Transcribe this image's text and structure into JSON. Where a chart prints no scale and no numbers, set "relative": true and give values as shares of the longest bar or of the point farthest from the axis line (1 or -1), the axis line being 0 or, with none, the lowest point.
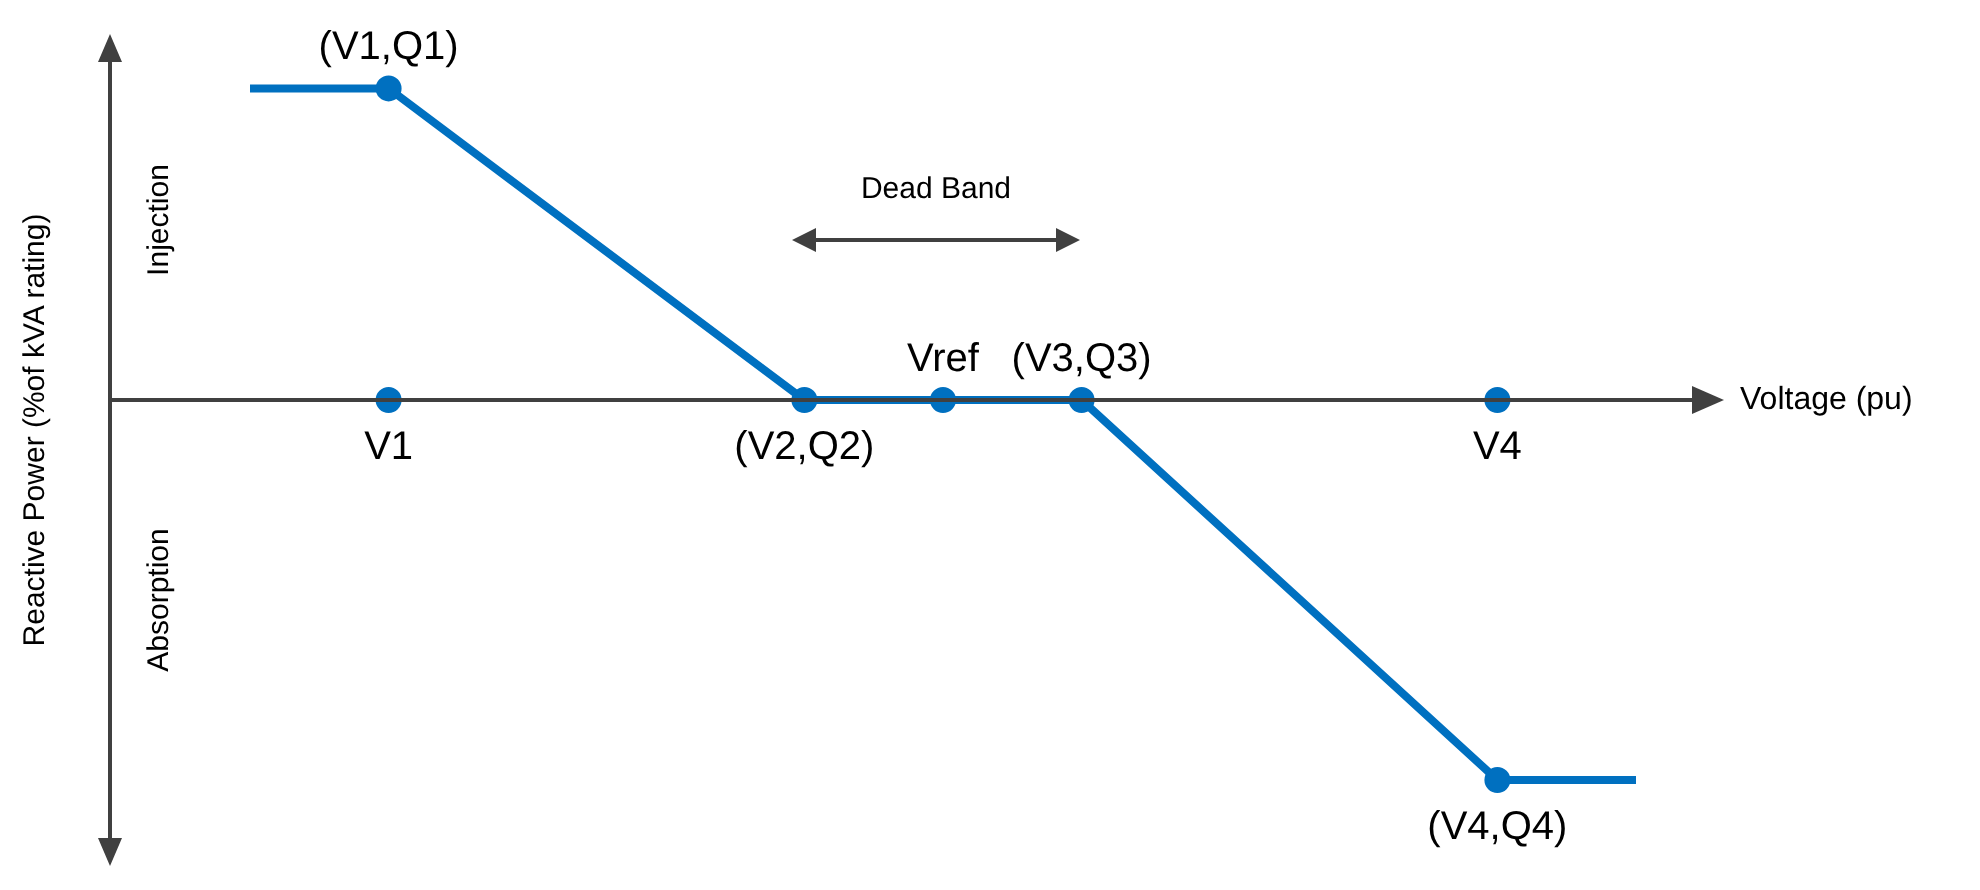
{
  "chart_data": {
    "type": "line",
    "relative": true,
    "xlabel": "Voltage (pu)",
    "ylabel": "Reactive Power (%of kVA rating)",
    "legend": false,
    "line_style": "solid",
    "categories": [
      null,
      "V1",
      null,
      null,
      null,
      "Vref",
      null,
      null,
      null,
      "V4",
      null
    ],
    "series": [
      {
        "color": "#0070c0",
        "values": [
          0.82,
          0.82,
          null,
          null,
          0,
          0,
          0,
          null,
          null,
          -1,
          -1
        ]
      },
      {
        "type": "scatter",
        "color": "#0070c0",
        "values": [
          null,
          0.82,
          null,
          null,
          0,
          0,
          0,
          null,
          null,
          -1,
          null
        ]
      },
      {
        "type": "scatter",
        "color": "#0070c0",
        "values": [
          null,
          0,
          null,
          null,
          null,
          null,
          null,
          null,
          null,
          0,
          null
        ]
      }
    ],
    "annotations": [
      "Injection",
      "Absorption",
      "Dead Band",
      {
        "text": "(V1,Q1)",
        "x": "V1",
        "y": 0.82
      },
      {
        "text": "(V2,Q2)",
        "y": 0
      },
      {
        "text": "(V3,Q3)",
        "y": 0
      },
      {
        "text": "(V4,Q4)",
        "x": "V4",
        "y": -1
      }
    ]
  }
}
